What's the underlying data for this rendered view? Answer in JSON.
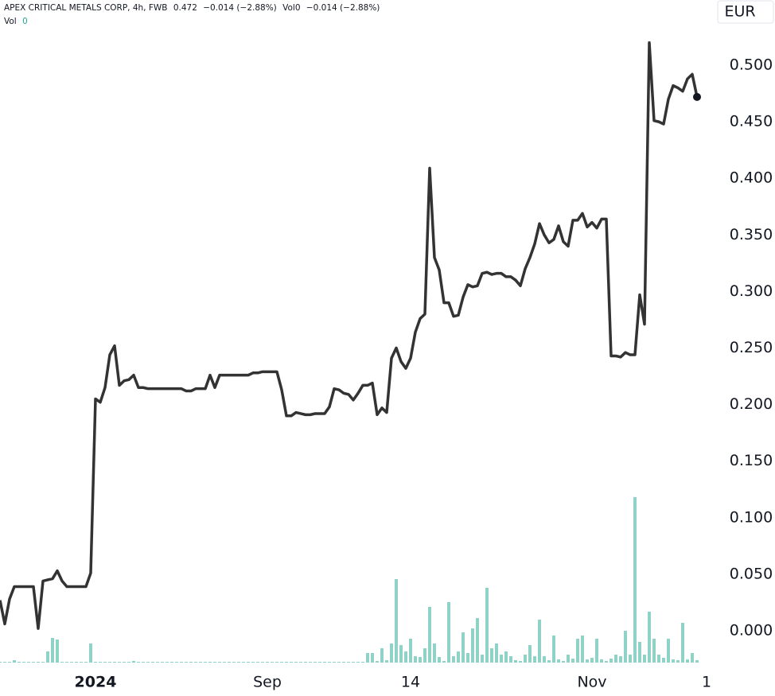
{
  "chart_data": {
    "type": "line",
    "legend": {
      "symbol": "APEX CRITICAL METALS CORP, 4h, FWB",
      "last": "0.472",
      "change": "−0.014 (−2.88%)",
      "vol": "Vol0",
      "vol_change": "−0.014 (−2.88%)",
      "vol_name": "Vol",
      "vol_value": "0"
    },
    "currency": "EUR",
    "categories": [
      null,
      null,
      null,
      null,
      null,
      null,
      null,
      null,
      null,
      null,
      null,
      null,
      null,
      null,
      null,
      null,
      null,
      null,
      null,
      null,
      "2024",
      null,
      null,
      null,
      null,
      null,
      null,
      null,
      null,
      null,
      null,
      null,
      null,
      null,
      null,
      null,
      null,
      null,
      null,
      null,
      null,
      null,
      null,
      null,
      null,
      null,
      null,
      null,
      null,
      null,
      null,
      null,
      null,
      null,
      null,
      null,
      "Sep",
      null,
      null,
      null,
      null,
      null,
      null,
      null,
      null,
      null,
      null,
      null,
      null,
      null,
      null,
      null,
      null,
      null,
      null,
      null,
      null,
      null,
      null,
      null,
      null,
      null,
      null,
      null,
      null,
      null,
      "14",
      null,
      null,
      null,
      null,
      null,
      null,
      null,
      null,
      null,
      null,
      null,
      null,
      null,
      null,
      null,
      null,
      null,
      null,
      null,
      null,
      null,
      null,
      null,
      null,
      null,
      null,
      null,
      null,
      null,
      null,
      null,
      null,
      null,
      null,
      null,
      null,
      null,
      "Nov",
      null,
      null,
      null,
      null,
      null,
      null,
      null,
      null,
      null,
      null,
      null,
      null,
      null,
      null,
      null,
      null,
      null,
      null,
      null,
      null,
      null,
      null,
      null,
      "1"
    ],
    "series": [
      {
        "color": "#333333",
        "values": [
          0.027,
          0.006,
          0.028,
          0.039,
          0.039,
          0.039,
          0.039,
          0.039,
          0.002,
          0.044,
          0.045,
          0.046,
          0.053,
          0.044,
          0.039,
          0.039,
          0.039,
          0.039,
          0.039,
          0.051,
          0.205,
          0.202,
          0.215,
          0.244,
          0.252,
          0.217,
          0.221,
          0.222,
          0.226,
          0.215,
          0.215,
          0.214,
          0.214,
          0.214,
          0.214,
          0.214,
          0.214,
          0.214,
          0.214,
          0.212,
          0.212,
          0.214,
          0.214,
          0.214,
          0.226,
          0.215,
          0.226,
          0.226,
          0.226,
          0.226,
          0.226,
          0.226,
          0.226,
          0.228,
          0.228,
          0.229,
          0.229,
          0.229,
          0.229,
          0.213,
          0.19,
          0.19,
          0.193,
          0.192,
          0.191,
          0.191,
          0.192,
          0.192,
          0.192,
          0.198,
          0.214,
          0.213,
          0.21,
          0.209,
          0.204,
          0.21,
          0.217,
          0.217,
          0.219,
          0.191,
          0.197,
          0.193,
          0.241,
          0.25,
          0.238,
          0.232,
          0.241,
          0.264,
          0.276,
          0.28,
          0.409,
          0.33,
          0.319,
          0.29,
          0.29,
          0.278,
          0.279,
          0.295,
          0.306,
          0.304,
          0.305,
          0.316,
          0.317,
          0.315,
          0.316,
          0.316,
          0.313,
          0.313,
          0.31,
          0.305,
          0.32,
          0.33,
          0.342,
          0.36,
          0.35,
          0.343,
          0.346,
          0.358,
          0.344,
          0.34,
          0.363,
          0.363,
          0.369,
          0.357,
          0.361,
          0.356,
          0.364,
          0.364,
          0.243,
          0.243,
          0.242,
          0.246,
          0.244,
          0.244,
          0.297,
          0.271,
          0.52,
          0.451,
          0.45,
          0.448,
          0.47,
          0.482,
          0.48,
          0.477,
          0.488,
          0.492,
          0.472,
          null,
          null
        ]
      }
    ],
    "volume": {
      "color": "#8fd3c8",
      "values": [
        1,
        1,
        1,
        3,
        1,
        1,
        1,
        1,
        1,
        1,
        14,
        31,
        29,
        1,
        1,
        1,
        1,
        1,
        1,
        24,
        1,
        1,
        1,
        1,
        1,
        1,
        1,
        1,
        2,
        1,
        1,
        1,
        1,
        1,
        1,
        1,
        1,
        1,
        1,
        1,
        1,
        1,
        1,
        1,
        1,
        1,
        1,
        1,
        1,
        1,
        1,
        1,
        1,
        1,
        1,
        1,
        1,
        1,
        1,
        1,
        1,
        1,
        1,
        1,
        1,
        1,
        1,
        1,
        1,
        1,
        1,
        1,
        1,
        1,
        1,
        1,
        1,
        12,
        12,
        2,
        18,
        3,
        24,
        105,
        22,
        14,
        30,
        8,
        7,
        18,
        70,
        24,
        7,
        2,
        76,
        8,
        14,
        38,
        12,
        43,
        56,
        10,
        94,
        18,
        24,
        10,
        14,
        8,
        3,
        2,
        10,
        22,
        8,
        54,
        8,
        3,
        34,
        4,
        2,
        10,
        5,
        30,
        34,
        4,
        6,
        30,
        4,
        2,
        5,
        10,
        8,
        40,
        10,
        208,
        26,
        10,
        64,
        30,
        10,
        6,
        30,
        4,
        3,
        50,
        4,
        12,
        3,
        null,
        null
      ]
    },
    "ylim": [
      -0.0366,
      0.5577
    ],
    "yticks": [
      {
        "value": 0,
        "label": "0.000"
      },
      {
        "value": 0.05,
        "label": "0.050"
      },
      {
        "value": 0.1,
        "label": "0.100"
      },
      {
        "value": 0.15,
        "label": "0.150"
      },
      {
        "value": 0.2,
        "label": "0.200"
      },
      {
        "value": 0.25,
        "label": "0.250"
      },
      {
        "value": 0.3,
        "label": "0.300"
      },
      {
        "value": 0.35,
        "label": "0.350"
      },
      {
        "value": 0.4,
        "label": "0.400"
      },
      {
        "value": 0.45,
        "label": "0.450"
      },
      {
        "value": 0.5,
        "label": "0.500"
      }
    ],
    "grid": false
  }
}
